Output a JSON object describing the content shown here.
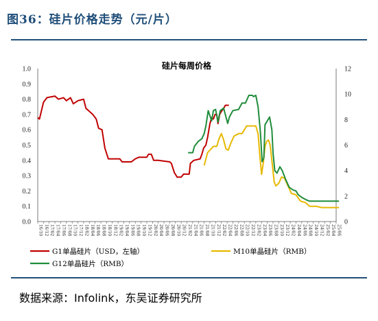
{
  "figure": {
    "title": "图36：硅片价格走势（元/片）",
    "source": "数据来源：Infolink，东吴证券研究所"
  },
  "chart_data": {
    "type": "line",
    "title": "硅片每周价格",
    "left_axis": {
      "ylim": [
        0,
        1.0
      ],
      "ticks": [
        "0.0",
        "0.1",
        "0.2",
        "0.3",
        "0.4",
        "0.5",
        "0.6",
        "0.7",
        "0.8",
        "0.9",
        "1.0"
      ]
    },
    "right_axis": {
      "ylim": [
        0,
        12
      ],
      "ticks": [
        "0",
        "2",
        "4",
        "6",
        "8",
        "10",
        "12"
      ]
    },
    "x_ticks": [
      "16/10",
      "16/12",
      "17/02",
      "17/04",
      "17/06",
      "17/08",
      "17/10",
      "17/12",
      "18/02",
      "18/04",
      "18/06",
      "18/08",
      "18/10",
      "18/12",
      "19/02",
      "19/04",
      "19/06",
      "19/08",
      "19/10",
      "19/12",
      "20/02",
      "20/04",
      "20/06",
      "20/08",
      "20/10",
      "20/12",
      "21/02",
      "21/04",
      "21/06",
      "21/08",
      "21/10",
      "21/12",
      "22/02",
      "22/04",
      "22/06",
      "22/08",
      "22/10",
      "22/12",
      "23/02",
      "23/04",
      "23/06",
      "23/08",
      "23/10",
      "23/12",
      "24/02",
      "24/04",
      "24/06",
      "24/08",
      "24/10",
      "24/12",
      "25/02",
      "25/04",
      "25/06"
    ],
    "grid": false,
    "legend_position": "bottom",
    "series": [
      {
        "name": "G1单晶硅片（USD，左轴）",
        "color": "#c00000",
        "axis": "left",
        "points": [
          [
            0,
            0.68
          ],
          [
            0.3,
            0.67
          ],
          [
            1,
            0.78
          ],
          [
            1.6,
            0.81
          ],
          [
            3,
            0.82
          ],
          [
            3.6,
            0.8
          ],
          [
            4.5,
            0.81
          ],
          [
            5,
            0.79
          ],
          [
            5.7,
            0.81
          ],
          [
            6.2,
            0.77
          ],
          [
            7,
            0.79
          ],
          [
            8,
            0.8
          ],
          [
            8.4,
            0.74
          ],
          [
            9,
            0.72
          ],
          [
            9.6,
            0.7
          ],
          [
            10.2,
            0.67
          ],
          [
            10.6,
            0.61
          ],
          [
            11.2,
            0.6
          ],
          [
            11.7,
            0.48
          ],
          [
            12.3,
            0.41
          ],
          [
            13,
            0.41
          ],
          [
            14.3,
            0.41
          ],
          [
            14.7,
            0.39
          ],
          [
            15.6,
            0.39
          ],
          [
            16.3,
            0.39
          ],
          [
            17,
            0.41
          ],
          [
            17.6,
            0.42
          ],
          [
            19,
            0.42
          ],
          [
            19.3,
            0.44
          ],
          [
            19.8,
            0.44
          ],
          [
            20.2,
            0.4
          ],
          [
            21,
            0.4
          ],
          [
            23,
            0.39
          ],
          [
            23.3,
            0.38
          ],
          [
            23.8,
            0.32
          ],
          [
            24.3,
            0.29
          ],
          [
            25,
            0.29
          ],
          [
            25.4,
            0.31
          ],
          [
            26,
            0.31
          ],
          [
            26.4,
            0.31
          ],
          [
            26.6,
            0.38
          ],
          [
            27.2,
            0.4
          ],
          [
            28.3,
            0.41
          ],
          [
            28.6,
            0.44
          ],
          [
            28.9,
            0.48
          ],
          [
            29.3,
            0.5
          ],
          [
            29.6,
            0.55
          ],
          [
            30.0,
            0.64
          ],
          [
            30.3,
            0.68
          ],
          [
            30.6,
            0.67
          ],
          [
            30.9,
            0.7
          ],
          [
            31.2,
            0.7
          ],
          [
            31.4,
            0.64
          ],
          [
            31.7,
            0.7
          ],
          [
            32.0,
            0.72
          ],
          [
            32.4,
            0.74
          ],
          [
            32.7,
            0.76
          ],
          [
            33.3,
            0.76
          ]
        ]
      },
      {
        "name": "M10单晶硅片（RMB）",
        "color": "#e8b800",
        "axis": "right",
        "points": [
          [
            29.0,
            4.4
          ],
          [
            29.6,
            5.4
          ],
          [
            30.6,
            5.9
          ],
          [
            31.2,
            5.9
          ],
          [
            31.6,
            6.5
          ],
          [
            32.0,
            6.9
          ],
          [
            32.4,
            6.4
          ],
          [
            32.8,
            5.7
          ],
          [
            33.2,
            5.6
          ],
          [
            33.6,
            6.1
          ],
          [
            34.2,
            6.7
          ],
          [
            35.0,
            6.9
          ],
          [
            35.6,
            6.9
          ],
          [
            36.0,
            7.2
          ],
          [
            36.4,
            7.5
          ],
          [
            38.0,
            7.5
          ],
          [
            38.4,
            6.9
          ],
          [
            38.7,
            5.2
          ],
          [
            39.0,
            3.7
          ],
          [
            39.3,
            4.6
          ],
          [
            39.6,
            5.9
          ],
          [
            39.9,
            6.3
          ],
          [
            40.2,
            6.4
          ],
          [
            40.5,
            6.0
          ],
          [
            40.9,
            4.4
          ],
          [
            41.2,
            3.1
          ],
          [
            41.5,
            2.8
          ],
          [
            42.0,
            3.0
          ],
          [
            42.5,
            3.5
          ],
          [
            43.0,
            3.4
          ],
          [
            43.5,
            2.9
          ],
          [
            44.2,
            2.2
          ],
          [
            45.0,
            2.1
          ],
          [
            45.8,
            1.6
          ],
          [
            46.6,
            1.5
          ],
          [
            47.4,
            1.2
          ],
          [
            48.5,
            1.2
          ],
          [
            49.5,
            1.1
          ],
          [
            52.5,
            1.1
          ]
        ]
      },
      {
        "name": "G12单晶硅片（RMB）",
        "color": "#1e8c3a",
        "axis": "right",
        "points": [
          [
            26.2,
            5.4
          ],
          [
            27.0,
            5.4
          ],
          [
            27.3,
            5.9
          ],
          [
            28.0,
            6.3
          ],
          [
            28.6,
            6.5
          ],
          [
            29.0,
            6.9
          ],
          [
            29.3,
            7.5
          ],
          [
            29.7,
            8.7
          ],
          [
            30.0,
            8.3
          ],
          [
            30.3,
            7.9
          ],
          [
            30.6,
            8.7
          ],
          [
            31.0,
            8.8
          ],
          [
            31.4,
            7.8
          ],
          [
            31.8,
            8.7
          ],
          [
            32.4,
            8.9
          ],
          [
            32.8,
            8.2
          ],
          [
            33.1,
            7.7
          ],
          [
            33.4,
            8.2
          ],
          [
            34.0,
            8.7
          ],
          [
            35.0,
            8.8
          ],
          [
            35.6,
            9.3
          ],
          [
            36.2,
            9.3
          ],
          [
            36.8,
            9.9
          ],
          [
            37.4,
            9.9
          ],
          [
            37.6,
            9.8
          ],
          [
            38.0,
            9.9
          ],
          [
            38.4,
            9.0
          ],
          [
            38.8,
            7.0
          ],
          [
            39.1,
            4.7
          ],
          [
            39.4,
            5.0
          ],
          [
            39.6,
            7.6
          ],
          [
            40.4,
            8.2
          ],
          [
            40.8,
            7.2
          ],
          [
            41.0,
            5.4
          ],
          [
            41.3,
            4.0
          ],
          [
            41.7,
            3.8
          ],
          [
            42.2,
            4.3
          ],
          [
            42.6,
            4.0
          ],
          [
            43.2,
            3.3
          ],
          [
            43.8,
            2.7
          ],
          [
            44.4,
            2.5
          ],
          [
            45.0,
            2.4
          ],
          [
            45.4,
            2.1
          ],
          [
            46.0,
            1.9
          ],
          [
            46.8,
            1.7
          ],
          [
            47.4,
            1.6
          ],
          [
            52.5,
            1.6
          ]
        ]
      }
    ]
  }
}
